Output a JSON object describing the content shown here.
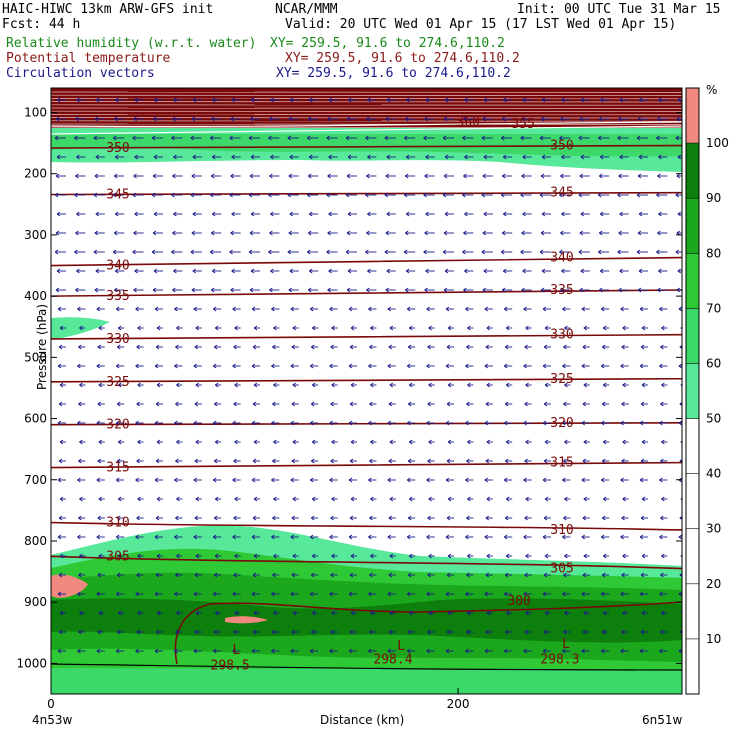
{
  "header": {
    "model_line": "HAIC-HIWC 13km ARW-GFS init",
    "org": "NCAR/MMM",
    "init": "Init: 00 UTC Tue 31 Mar 15",
    "fcst": "Fcst:   44 h",
    "valid": "Valid: 20 UTC Wed 01 Apr 15 (17 LST Wed 01 Apr 15)",
    "fields": [
      {
        "name": "Relative humidity (w.r.t. water)",
        "xy": "XY= 259.5, 91.6 to 274.6,110.2",
        "color": "#1a8a1a"
      },
      {
        "name": "Potential temperature",
        "xy": "XY= 259.5, 91.6 to 274.6,110.2",
        "color": "#8b1a1a"
      },
      {
        "name": "Circulation vectors",
        "xy": "XY= 259.5, 91.6 to 274.6,110.2",
        "color": "#1a1a8a"
      }
    ]
  },
  "chart_data": {
    "type": "contour-cross-section",
    "xlabel": "Distance (km)",
    "ylabel": "Pressure (hPa)",
    "xlim": [
      0,
      310
    ],
    "ylim": [
      1050,
      60
    ],
    "x_ticks": [
      0,
      200
    ],
    "y_ticks": [
      100,
      200,
      300,
      400,
      500,
      600,
      700,
      800,
      900,
      1000
    ],
    "left_endpoint_label": "4n53w",
    "right_endpoint_label": "6n51w",
    "colorbar": {
      "unit": "%",
      "levels": [
        10,
        20,
        30,
        40,
        50,
        60,
        70,
        80,
        90,
        100
      ],
      "fills": [
        {
          "min": 50,
          "max": 60,
          "color": "#57e89a"
        },
        {
          "min": 60,
          "max": 70,
          "color": "#3cd86a"
        },
        {
          "min": 70,
          "max": 80,
          "color": "#2ec935"
        },
        {
          "min": 80,
          "max": 90,
          "color": "#1ca81c"
        },
        {
          "min": 90,
          "max": 100,
          "color": "#0c7f0c"
        },
        {
          "min": 100,
          "max": 110,
          "color": "#f08a80"
        }
      ]
    },
    "theta_contours": [
      {
        "value": 350,
        "p_left": 158,
        "p_right": 154,
        "label": "350"
      },
      {
        "value": 345,
        "p_left": 234,
        "p_right": 231,
        "label": "345"
      },
      {
        "value": 340,
        "p_left": 350,
        "p_right": 337,
        "label": "340"
      },
      {
        "value": 335,
        "p_left": 400,
        "p_right": 390,
        "label": "335"
      },
      {
        "value": 330,
        "p_left": 470,
        "p_right": 463,
        "label": "330"
      },
      {
        "value": 325,
        "p_left": 540,
        "p_right": 535,
        "label": "325"
      },
      {
        "value": 320,
        "p_left": 610,
        "p_right": 607,
        "label": "320"
      },
      {
        "value": 315,
        "p_left": 680,
        "p_right": 672,
        "label": "315"
      },
      {
        "value": 310,
        "p_left": 770,
        "p_right": 782,
        "label": "310"
      },
      {
        "value": 305,
        "p_left": 825,
        "p_right": 845,
        "label": "305"
      }
    ],
    "upper_labels": [
      {
        "text": "360",
        "x_km": 205,
        "p": 122
      },
      {
        "text": "355",
        "x_km": 232,
        "p": 125
      }
    ],
    "surface_labels": [
      {
        "text": "298.5",
        "x_km": 88,
        "p": 1010
      },
      {
        "text": "298.4",
        "x_km": 168,
        "p": 1000
      },
      {
        "text": "298.3",
        "x_km": 250,
        "p": 1000
      }
    ],
    "low_markers": [
      {
        "text": "L",
        "x_km": 91,
        "p": 985
      },
      {
        "text": "L",
        "x_km": 172,
        "p": 978
      },
      {
        "text": "L",
        "x_km": 253,
        "p": 975
      }
    ],
    "inner_contour_300": {
      "label": "300",
      "label_x_km": 230,
      "label_p": 905
    }
  }
}
